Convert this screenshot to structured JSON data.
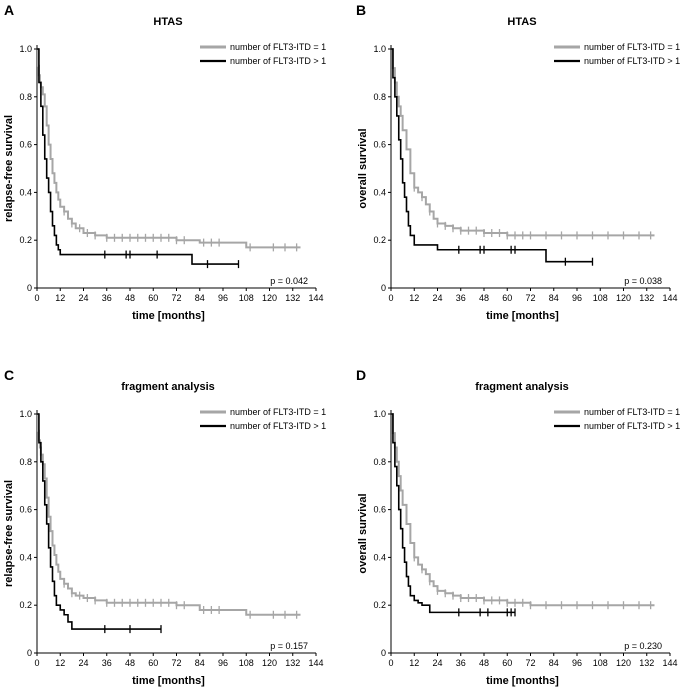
{
  "chart_data": [
    {
      "type": "line",
      "panel": "A",
      "title": "HTAS",
      "xlabel": "time [months]",
      "ylabel": "relapse-free survival",
      "xlim": [
        0,
        144
      ],
      "ylim": [
        0,
        1.0
      ],
      "xticks": [
        "0",
        "12",
        "24",
        "36",
        "48",
        "60",
        "72",
        "84",
        "96",
        "108",
        "120",
        "132",
        "144"
      ],
      "yticks": [
        "0",
        "0.2",
        "0.4",
        "0.6",
        "0.8",
        "1.0"
      ],
      "legend_position": "top-right",
      "annotation": "p = 0.042",
      "series": [
        {
          "name": "number of FLT3-ITD = 1",
          "color": "#a6a6a6",
          "x": [
            0,
            0.5,
            1,
            1.5,
            2,
            3,
            4,
            5,
            6,
            7,
            8,
            9,
            10,
            11,
            12,
            14,
            16,
            18,
            20,
            24,
            30,
            36,
            48,
            60,
            72,
            84,
            96,
            108,
            120,
            136
          ],
          "y": [
            1.0,
            0.93,
            0.89,
            0.86,
            0.84,
            0.81,
            0.76,
            0.68,
            0.6,
            0.54,
            0.48,
            0.44,
            0.4,
            0.37,
            0.34,
            0.32,
            0.29,
            0.27,
            0.25,
            0.23,
            0.22,
            0.21,
            0.21,
            0.21,
            0.2,
            0.19,
            0.19,
            0.17,
            0.17,
            0.17
          ],
          "censor_x": [
            14,
            18,
            22,
            26,
            30,
            36,
            40,
            44,
            48,
            52,
            56,
            60,
            64,
            68,
            72,
            76,
            86,
            90,
            94,
            110,
            122,
            128,
            134
          ]
        },
        {
          "name": "number of FLT3-ITD > 1",
          "color": "#000000",
          "x": [
            0,
            1,
            2,
            3,
            4,
            5,
            6,
            7,
            8,
            9,
            10,
            11,
            12,
            80,
            104
          ],
          "y": [
            1.0,
            0.86,
            0.76,
            0.64,
            0.54,
            0.46,
            0.4,
            0.32,
            0.26,
            0.22,
            0.18,
            0.16,
            0.14,
            0.1,
            0.1
          ],
          "censor_x": [
            35,
            46,
            48,
            62,
            88,
            104
          ]
        }
      ]
    },
    {
      "type": "line",
      "panel": "B",
      "title": "HTAS",
      "xlabel": "time [months]",
      "ylabel": "overall survival",
      "xlim": [
        0,
        144
      ],
      "ylim": [
        0,
        1.0
      ],
      "xticks": [
        "0",
        "12",
        "24",
        "36",
        "48",
        "60",
        "72",
        "84",
        "96",
        "108",
        "120",
        "132",
        "144"
      ],
      "yticks": [
        "0",
        "0.2",
        "0.4",
        "0.6",
        "0.8",
        "1.0"
      ],
      "legend_position": "top-right",
      "annotation": "p = 0.038",
      "series": [
        {
          "name": "number of FLT3-ITD = 1",
          "color": "#a6a6a6",
          "x": [
            0,
            1,
            2,
            3,
            4,
            5,
            6,
            8,
            10,
            12,
            14,
            16,
            18,
            20,
            22,
            24,
            28,
            32,
            36,
            48,
            60,
            72,
            96,
            120,
            136
          ],
          "y": [
            1.0,
            0.92,
            0.86,
            0.8,
            0.76,
            0.72,
            0.66,
            0.58,
            0.48,
            0.42,
            0.4,
            0.38,
            0.35,
            0.32,
            0.29,
            0.27,
            0.26,
            0.25,
            0.24,
            0.23,
            0.22,
            0.22,
            0.22,
            0.22,
            0.22
          ],
          "censor_x": [
            12,
            16,
            20,
            24,
            28,
            32,
            36,
            40,
            44,
            48,
            52,
            56,
            60,
            64,
            68,
            72,
            80,
            88,
            96,
            104,
            112,
            120,
            128,
            134
          ]
        },
        {
          "name": "number of FLT3-ITD > 1",
          "color": "#000000",
          "x": [
            0,
            1,
            2,
            3,
            4,
            5,
            6,
            7,
            8,
            9,
            10,
            12,
            16,
            24,
            80,
            104
          ],
          "y": [
            1.0,
            0.88,
            0.8,
            0.72,
            0.62,
            0.54,
            0.44,
            0.38,
            0.32,
            0.26,
            0.22,
            0.18,
            0.18,
            0.16,
            0.11,
            0.11
          ],
          "censor_x": [
            35,
            46,
            48,
            62,
            64,
            90,
            104
          ]
        }
      ]
    },
    {
      "type": "line",
      "panel": "C",
      "title": "fragment analysis",
      "xlabel": "time [months]",
      "ylabel": "relapse-free survival",
      "xlim": [
        0,
        144
      ],
      "ylim": [
        0,
        1.0
      ],
      "xticks": [
        "0",
        "12",
        "24",
        "36",
        "48",
        "60",
        "72",
        "84",
        "96",
        "108",
        "120",
        "132",
        "144"
      ],
      "yticks": [
        "0",
        "0.2",
        "0.4",
        "0.6",
        "0.8",
        "1.0"
      ],
      "legend_position": "top-right",
      "annotation": "p = 0.157",
      "series": [
        {
          "name": "number of FLT3-ITD = 1",
          "color": "#a6a6a6",
          "x": [
            0,
            0.5,
            1,
            1.5,
            2,
            3,
            4,
            5,
            6,
            7,
            8,
            9,
            10,
            11,
            12,
            14,
            16,
            18,
            20,
            24,
            30,
            36,
            48,
            60,
            72,
            84,
            96,
            108,
            120,
            136
          ],
          "y": [
            1.0,
            0.93,
            0.89,
            0.86,
            0.83,
            0.79,
            0.73,
            0.65,
            0.57,
            0.51,
            0.45,
            0.41,
            0.37,
            0.34,
            0.31,
            0.29,
            0.27,
            0.25,
            0.24,
            0.23,
            0.22,
            0.21,
            0.21,
            0.21,
            0.2,
            0.18,
            0.18,
            0.16,
            0.16,
            0.16
          ],
          "censor_x": [
            14,
            18,
            22,
            26,
            30,
            36,
            40,
            44,
            48,
            52,
            56,
            60,
            64,
            68,
            72,
            76,
            86,
            90,
            94,
            110,
            122,
            128,
            134
          ]
        },
        {
          "name": "number of FLT3-ITD > 1",
          "color": "#000000",
          "x": [
            0,
            1,
            2,
            3,
            4,
            5,
            6,
            7,
            8,
            9,
            10,
            12,
            14,
            16,
            18,
            64
          ],
          "y": [
            1.0,
            0.88,
            0.8,
            0.72,
            0.62,
            0.54,
            0.44,
            0.36,
            0.3,
            0.24,
            0.2,
            0.18,
            0.16,
            0.13,
            0.1,
            0.1
          ],
          "censor_x": [
            35,
            48,
            64
          ]
        }
      ]
    },
    {
      "type": "line",
      "panel": "D",
      "title": "fragment analysis",
      "xlabel": "time [months]",
      "ylabel": "overall survival",
      "xlim": [
        0,
        144
      ],
      "ylim": [
        0,
        1.0
      ],
      "xticks": [
        "0",
        "12",
        "24",
        "36",
        "48",
        "60",
        "72",
        "84",
        "96",
        "108",
        "120",
        "132",
        "144"
      ],
      "yticks": [
        "0",
        "0.2",
        "0.4",
        "0.6",
        "0.8",
        "1.0"
      ],
      "legend_position": "top-right",
      "annotation": "p = 0.230",
      "series": [
        {
          "name": "number of FLT3-ITD = 1",
          "color": "#a6a6a6",
          "x": [
            0,
            1,
            2,
            3,
            4,
            5,
            6,
            8,
            10,
            12,
            14,
            16,
            18,
            20,
            22,
            24,
            28,
            32,
            36,
            48,
            60,
            72,
            96,
            120,
            136
          ],
          "y": [
            1.0,
            0.92,
            0.86,
            0.8,
            0.74,
            0.68,
            0.62,
            0.54,
            0.46,
            0.4,
            0.37,
            0.35,
            0.33,
            0.3,
            0.28,
            0.26,
            0.25,
            0.24,
            0.23,
            0.22,
            0.21,
            0.2,
            0.2,
            0.2,
            0.2
          ],
          "censor_x": [
            12,
            16,
            20,
            24,
            28,
            32,
            36,
            40,
            44,
            48,
            52,
            56,
            60,
            64,
            68,
            72,
            80,
            88,
            96,
            104,
            112,
            120,
            128,
            134
          ]
        },
        {
          "name": "number of FLT3-ITD > 1",
          "color": "#000000",
          "x": [
            0,
            1,
            2,
            3,
            4,
            5,
            6,
            7,
            8,
            9,
            10,
            12,
            14,
            16,
            20,
            64
          ],
          "y": [
            1.0,
            0.88,
            0.78,
            0.7,
            0.6,
            0.52,
            0.44,
            0.38,
            0.32,
            0.28,
            0.24,
            0.22,
            0.21,
            0.2,
            0.17,
            0.17
          ],
          "censor_x": [
            35,
            46,
            50,
            60,
            62,
            64
          ]
        }
      ]
    }
  ]
}
